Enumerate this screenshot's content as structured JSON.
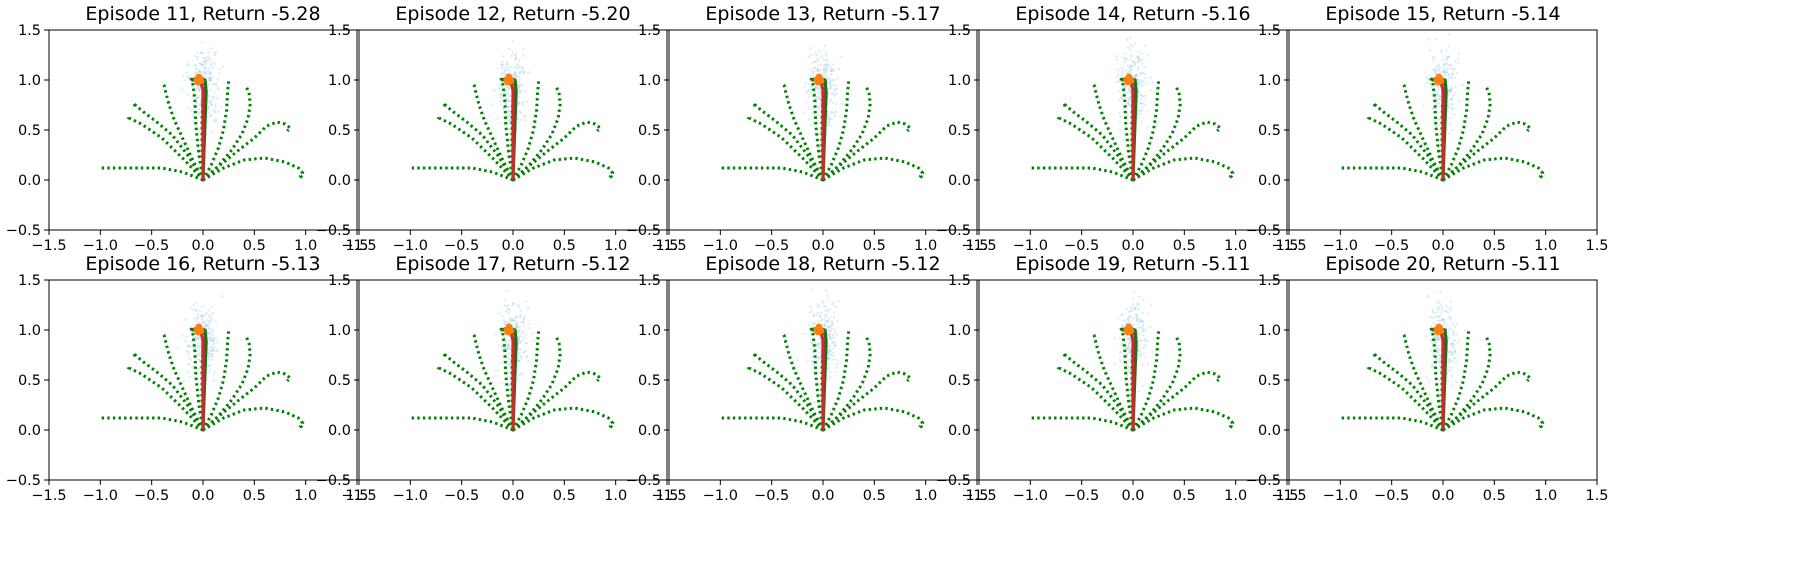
{
  "chart_data": {
    "type": "scatter",
    "layout": {
      "rows": 2,
      "cols": 5
    },
    "axes": {
      "xlim": [
        -1.5,
        1.5
      ],
      "ylim": [
        -0.5,
        1.5
      ],
      "xticks": [
        -1.5,
        -1.0,
        -0.5,
        0.0,
        0.5,
        1.0,
        1.5
      ],
      "yticks": [
        -0.5,
        0.0,
        0.5,
        1.0,
        1.5
      ],
      "xtick_labels": [
        "−1.5",
        "−1.0",
        "−0.5",
        "0.0",
        "0.5",
        "1.0",
        "1.5"
      ],
      "ytick_labels": [
        "−0.5",
        "0.0",
        "0.5",
        "1.0",
        "1.5"
      ],
      "grid": false
    },
    "panels": [
      {
        "title": "Episode 11, Return -5.28",
        "episode": 11,
        "return": -5.28
      },
      {
        "title": "Episode 12, Return -5.20",
        "episode": 12,
        "return": -5.2
      },
      {
        "title": "Episode 13, Return -5.17",
        "episode": 13,
        "return": -5.17
      },
      {
        "title": "Episode 14, Return -5.16",
        "episode": 14,
        "return": -5.16
      },
      {
        "title": "Episode 15, Return -5.14",
        "episode": 15,
        "return": -5.14
      },
      {
        "title": "Episode 16, Return -5.13",
        "episode": 16,
        "return": -5.13
      },
      {
        "title": "Episode 17, Return -5.12",
        "episode": 17,
        "return": -5.12
      },
      {
        "title": "Episode 18, Return -5.12",
        "episode": 18,
        "return": -5.12
      },
      {
        "title": "Episode 19, Return -5.11",
        "episode": 19,
        "return": -5.11
      },
      {
        "title": "Episode 20, Return -5.11",
        "episode": 20,
        "return": -5.11
      }
    ],
    "series": [
      {
        "name": "green dotted trajectories",
        "color": "#008000",
        "style": "dotted",
        "paths": [
          [
            [
              0.0,
              0.0
            ],
            [
              -0.18,
              0.2
            ],
            [
              -0.4,
              0.42
            ],
            [
              -0.6,
              0.56
            ],
            [
              -0.68,
              0.6
            ],
            [
              -0.72,
              0.62
            ],
            [
              -0.7,
              0.64
            ]
          ],
          [
            [
              0.0,
              0.0
            ],
            [
              -0.15,
              0.25
            ],
            [
              -0.3,
              0.45
            ],
            [
              -0.45,
              0.58
            ],
            [
              -0.58,
              0.68
            ],
            [
              -0.65,
              0.74
            ],
            [
              -0.68,
              0.77
            ],
            [
              -0.66,
              0.74
            ]
          ],
          [
            [
              0.0,
              0.0
            ],
            [
              -0.1,
              0.2
            ],
            [
              -0.2,
              0.42
            ],
            [
              -0.28,
              0.6
            ],
            [
              -0.33,
              0.75
            ],
            [
              -0.36,
              0.87
            ],
            [
              -0.38,
              0.95
            ],
            [
              -0.4,
              0.97
            ]
          ],
          [
            [
              0.0,
              0.0
            ],
            [
              -0.04,
              0.25
            ],
            [
              -0.07,
              0.55
            ],
            [
              -0.08,
              0.8
            ],
            [
              -0.1,
              0.98
            ],
            [
              -0.12,
              1.02
            ]
          ],
          [
            [
              0.0,
              0.0
            ],
            [
              -0.01,
              0.3
            ],
            [
              -0.01,
              0.6
            ],
            [
              0.0,
              0.85
            ],
            [
              0.01,
              1.0
            ]
          ],
          [
            [
              0.0,
              0.0
            ],
            [
              0.08,
              0.15
            ],
            [
              0.15,
              0.32
            ],
            [
              0.2,
              0.5
            ],
            [
              0.23,
              0.7
            ],
            [
              0.24,
              0.88
            ],
            [
              0.25,
              0.99
            ]
          ],
          [
            [
              0.0,
              0.0
            ],
            [
              0.15,
              0.14
            ],
            [
              0.28,
              0.3
            ],
            [
              0.38,
              0.46
            ],
            [
              0.44,
              0.62
            ],
            [
              0.46,
              0.76
            ],
            [
              0.45,
              0.86
            ],
            [
              0.42,
              0.94
            ]
          ],
          [
            [
              0.0,
              0.0
            ],
            [
              0.18,
              0.16
            ],
            [
              0.35,
              0.3
            ],
            [
              0.5,
              0.42
            ],
            [
              0.62,
              0.54
            ],
            [
              0.72,
              0.58
            ],
            [
              0.8,
              0.56
            ],
            [
              0.85,
              0.52
            ],
            [
              0.82,
              0.49
            ]
          ],
          [
            [
              0.0,
              0.0
            ],
            [
              0.2,
              0.12
            ],
            [
              0.4,
              0.2
            ],
            [
              0.6,
              0.22
            ],
            [
              0.8,
              0.18
            ],
            [
              0.93,
              0.12
            ],
            [
              0.97,
              0.07
            ],
            [
              0.95,
              0.04
            ],
            [
              0.97,
              0.02
            ]
          ],
          [
            [
              0.0,
              0.0
            ],
            [
              -0.2,
              0.08
            ],
            [
              -0.4,
              0.12
            ],
            [
              -0.6,
              0.12
            ],
            [
              -0.8,
              0.12
            ],
            [
              -1.0,
              0.12
            ]
          ]
        ]
      },
      {
        "name": "dark green trajectory",
        "color": "#1f6f1f",
        "style": "solid",
        "paths": [
          [
            [
              0.0,
              0.0
            ],
            [
              0.01,
              0.3
            ],
            [
              0.02,
              0.6
            ],
            [
              0.03,
              0.88
            ],
            [
              0.02,
              1.0
            ],
            [
              -0.06,
              1.02
            ],
            [
              -0.1,
              1.0
            ]
          ]
        ]
      },
      {
        "name": "red trajectory",
        "color": "#d62728",
        "style": "solid",
        "paths": [
          [
            [
              0.0,
              0.02
            ],
            [
              0.0,
              0.3
            ],
            [
              0.0,
              0.6
            ],
            [
              0.0,
              0.9
            ],
            [
              -0.02,
              0.98
            ]
          ]
        ]
      },
      {
        "name": "orange endpoint",
        "color": "#ff7f0e",
        "style": "marker",
        "paths": [
          [
            [
              -0.06,
              1.0
            ],
            [
              -0.04,
              1.03
            ],
            [
              -0.02,
              0.99
            ],
            [
              -0.03,
              1.01
            ],
            [
              -0.05,
              0.98
            ]
          ]
        ]
      },
      {
        "name": "light blue samples",
        "color": "#9ecae1",
        "style": "scatter-cloud",
        "center": [
          0.0,
          0.95
        ],
        "spread": [
          0.07,
          0.2
        ],
        "count": 240
      }
    ]
  }
}
